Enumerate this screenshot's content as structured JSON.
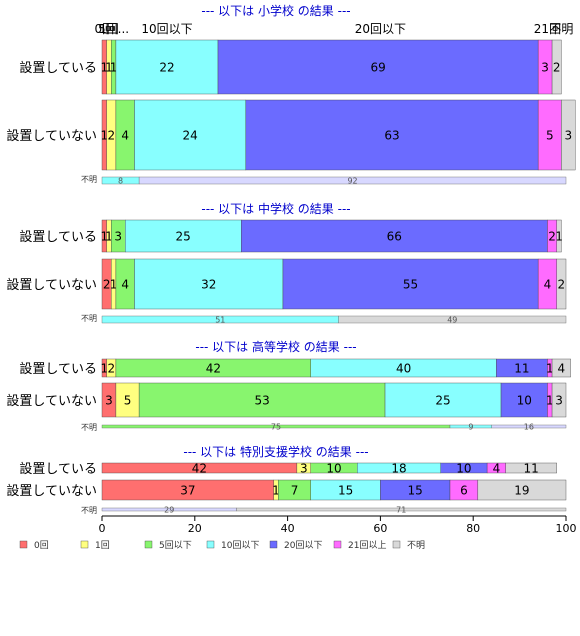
{
  "chart_data": {
    "type": "bar",
    "orientation": "horizontal-stacked-percent",
    "xlim": [
      0,
      100
    ],
    "xticks": [
      "0",
      "20",
      "40",
      "60",
      "80",
      "100"
    ],
    "categories_legend": [
      {
        "key": "0",
        "label": "0回",
        "color": "#ff6f6f"
      },
      {
        "key": "1",
        "label": "1回",
        "color": "#ffff80"
      },
      {
        "key": "5",
        "label": "5回以下",
        "color": "#88f56e"
      },
      {
        "key": "10",
        "label": "10回以下",
        "color": "#88ffff"
      },
      {
        "key": "20",
        "label": "20回以下",
        "color": "#6b6bff"
      },
      {
        "key": "21",
        "label": "21回以上",
        "color": "#ff6bff"
      },
      {
        "key": "na",
        "label": "不明",
        "color": "#d9d9d9"
      }
    ],
    "header_labels": [
      {
        "text": "0回",
        "at": 0.5
      },
      {
        "text": "1回",
        "at": 1.5
      },
      {
        "text": "5回...",
        "at": 2.5
      },
      {
        "text": "10回以下",
        "at": 14
      },
      {
        "text": "20回以下",
        "at": 60
      },
      {
        "text": "21回",
        "at": 96
      },
      {
        "text": "不明",
        "at": 99
      }
    ],
    "sections": [
      {
        "title": "--- 以下は 小学校 の結果 ---",
        "rows": [
          {
            "label": "設置している",
            "values": [
              1,
              1,
              1,
              22,
              69,
              3,
              2
            ]
          },
          {
            "label": "設置していない",
            "values": [
              1,
              2,
              4,
              24,
              63,
              5,
              3
            ]
          }
        ],
        "unknown_row": {
          "label": "不明",
          "values": [
            8,
            92
          ]
        }
      },
      {
        "title": "--- 以下は 中学校 の結果 ---",
        "rows": [
          {
            "label": "設置している",
            "values": [
              1,
              1,
              3,
              25,
              66,
              2,
              1
            ]
          },
          {
            "label": "設置していない",
            "values": [
              2,
              1,
              4,
              32,
              55,
              4,
              2
            ]
          }
        ],
        "unknown_row": {
          "label": "不明",
          "values": [
            51,
            49
          ]
        }
      },
      {
        "title": "--- 以下は 高等学校 の結果 ---",
        "rows": [
          {
            "label": "設置している",
            "values": [
              1,
              2,
              42,
              40,
              11,
              1,
              4
            ]
          },
          {
            "label": "設置していない",
            "values": [
              3,
              5,
              53,
              25,
              10,
              1,
              3
            ]
          }
        ],
        "unknown_row": {
          "label": "不明",
          "values": [
            75,
            9,
            16
          ]
        }
      },
      {
        "title": "--- 以下は 特別支援学校 の結果 ---",
        "rows": [
          {
            "label": "設置している",
            "values": [
              42,
              3,
              10,
              18,
              10,
              4,
              11
            ]
          },
          {
            "label": "設置していない",
            "values": [
              37,
              1,
              7,
              15,
              15,
              6,
              19
            ]
          }
        ],
        "unknown_row": {
          "label": "不明",
          "values": [
            29,
            71
          ]
        }
      }
    ]
  }
}
